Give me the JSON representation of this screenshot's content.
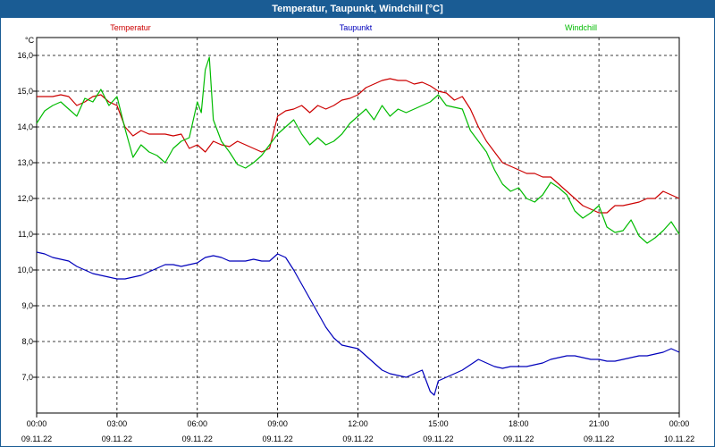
{
  "window": {
    "title": "Temperatur, Taupunkt, Windchill [°C]"
  },
  "chart_data": {
    "type": "line",
    "title": "Temperatur, Taupunkt, Windchill [°C]",
    "ylabel": "°C",
    "xlabel": "",
    "ylim": [
      6.0,
      16.5
    ],
    "xlim": [
      0,
      24
    ],
    "grid": true,
    "y_ticks": [
      {
        "v": 7.0,
        "label": "7,0"
      },
      {
        "v": 8.0,
        "label": "8,0"
      },
      {
        "v": 9.0,
        "label": "9,0"
      },
      {
        "v": 10.0,
        "label": "10,0"
      },
      {
        "v": 11.0,
        "label": "11,0"
      },
      {
        "v": 12.0,
        "label": "12,0"
      },
      {
        "v": 13.0,
        "label": "13,0"
      },
      {
        "v": 14.0,
        "label": "14,0"
      },
      {
        "v": 15.0,
        "label": "15,0"
      },
      {
        "v": 16.0,
        "label": "16,0"
      }
    ],
    "x_ticks": [
      {
        "h": 0,
        "time": "00:00",
        "date": "09.11.22"
      },
      {
        "h": 3,
        "time": "03:00",
        "date": "09.11.22"
      },
      {
        "h": 6,
        "time": "06:00",
        "date": "09.11.22"
      },
      {
        "h": 9,
        "time": "09:00",
        "date": "09.11.22"
      },
      {
        "h": 12,
        "time": "12:00",
        "date": "09.11.22"
      },
      {
        "h": 15,
        "time": "15:00",
        "date": "09.11.22"
      },
      {
        "h": 18,
        "time": "18:00",
        "date": "09.11.22"
      },
      {
        "h": 21,
        "time": "21:00",
        "date": "09.11.22"
      },
      {
        "h": 24,
        "time": "00:00",
        "date": "10.11.22"
      }
    ],
    "series": [
      {
        "name": "Temperatur",
        "color": "#cc0000",
        "x": [
          0,
          0.3,
          0.6,
          0.9,
          1.2,
          1.5,
          1.8,
          2.1,
          2.4,
          2.7,
          3.0,
          3.3,
          3.6,
          3.9,
          4.2,
          4.5,
          4.8,
          5.1,
          5.4,
          5.7,
          6.0,
          6.3,
          6.6,
          6.9,
          7.2,
          7.5,
          7.8,
          8.1,
          8.4,
          8.7,
          9.0,
          9.3,
          9.6,
          9.9,
          10.2,
          10.5,
          10.8,
          11.1,
          11.4,
          11.7,
          12.0,
          12.3,
          12.6,
          12.9,
          13.2,
          13.5,
          13.8,
          14.1,
          14.4,
          14.7,
          15.0,
          15.3,
          15.6,
          15.9,
          16.2,
          16.5,
          16.8,
          17.1,
          17.4,
          17.7,
          18.0,
          18.3,
          18.6,
          18.9,
          19.2,
          19.5,
          19.8,
          20.1,
          20.4,
          20.7,
          21.0,
          21.3,
          21.6,
          21.9,
          22.2,
          22.5,
          22.8,
          23.1,
          23.4,
          23.7,
          24.0
        ],
        "values": [
          14.85,
          14.85,
          14.85,
          14.9,
          14.85,
          14.6,
          14.7,
          14.85,
          14.9,
          14.7,
          14.6,
          14.0,
          13.75,
          13.9,
          13.8,
          13.8,
          13.8,
          13.75,
          13.8,
          13.4,
          13.5,
          13.3,
          13.6,
          13.5,
          13.45,
          13.6,
          13.5,
          13.4,
          13.3,
          13.4,
          14.3,
          14.45,
          14.5,
          14.6,
          14.4,
          14.6,
          14.5,
          14.6,
          14.75,
          14.8,
          14.9,
          15.1,
          15.2,
          15.3,
          15.35,
          15.3,
          15.3,
          15.2,
          15.25,
          15.15,
          15.0,
          14.95,
          14.75,
          14.85,
          14.5,
          14.0,
          13.6,
          13.3,
          13.0,
          12.9,
          12.8,
          12.7,
          12.7,
          12.6,
          12.6,
          12.4,
          12.2,
          12.0,
          11.8,
          11.7,
          11.6,
          11.6,
          11.8,
          11.8,
          11.85,
          11.9,
          12.0,
          12.0,
          12.2,
          12.1,
          12.0
        ]
      },
      {
        "name": "Taupunkt",
        "color": "#0000bb",
        "x": [
          0,
          0.3,
          0.6,
          0.9,
          1.2,
          1.5,
          1.8,
          2.1,
          2.4,
          2.7,
          3.0,
          3.3,
          3.6,
          3.9,
          4.2,
          4.5,
          4.8,
          5.1,
          5.4,
          5.7,
          6.0,
          6.3,
          6.6,
          6.9,
          7.2,
          7.5,
          7.8,
          8.1,
          8.4,
          8.7,
          9.0,
          9.3,
          9.6,
          9.9,
          10.2,
          10.5,
          10.8,
          11.1,
          11.4,
          11.7,
          12.0,
          12.3,
          12.6,
          12.9,
          13.2,
          13.5,
          13.8,
          14.1,
          14.4,
          14.7,
          14.85,
          15.0,
          15.3,
          15.6,
          15.9,
          16.2,
          16.5,
          16.8,
          17.1,
          17.4,
          17.7,
          18.0,
          18.3,
          18.6,
          18.9,
          19.2,
          19.5,
          19.8,
          20.1,
          20.4,
          20.7,
          21.0,
          21.3,
          21.6,
          21.9,
          22.2,
          22.5,
          22.8,
          23.1,
          23.4,
          23.7,
          24.0
        ],
        "values": [
          10.5,
          10.45,
          10.35,
          10.3,
          10.25,
          10.1,
          10.0,
          9.9,
          9.85,
          9.8,
          9.75,
          9.75,
          9.8,
          9.85,
          9.95,
          10.05,
          10.15,
          10.15,
          10.1,
          10.15,
          10.2,
          10.35,
          10.4,
          10.35,
          10.25,
          10.25,
          10.25,
          10.3,
          10.25,
          10.25,
          10.45,
          10.35,
          10.0,
          9.6,
          9.2,
          8.8,
          8.4,
          8.1,
          7.9,
          7.85,
          7.8,
          7.6,
          7.4,
          7.2,
          7.1,
          7.05,
          7.0,
          7.1,
          7.2,
          6.6,
          6.5,
          6.9,
          7.0,
          7.1,
          7.2,
          7.35,
          7.5,
          7.4,
          7.3,
          7.25,
          7.3,
          7.3,
          7.3,
          7.35,
          7.4,
          7.5,
          7.55,
          7.6,
          7.6,
          7.55,
          7.5,
          7.5,
          7.45,
          7.45,
          7.5,
          7.55,
          7.6,
          7.6,
          7.65,
          7.7,
          7.8,
          7.7
        ]
      },
      {
        "name": "Windchill",
        "color": "#00bb00",
        "x": [
          0,
          0.3,
          0.6,
          0.9,
          1.2,
          1.5,
          1.8,
          2.1,
          2.4,
          2.7,
          3.0,
          3.3,
          3.6,
          3.9,
          4.2,
          4.5,
          4.8,
          5.1,
          5.4,
          5.7,
          6.0,
          6.15,
          6.3,
          6.45,
          6.6,
          6.9,
          7.2,
          7.5,
          7.8,
          8.1,
          8.4,
          8.7,
          9.0,
          9.3,
          9.6,
          9.9,
          10.2,
          10.5,
          10.8,
          11.1,
          11.4,
          11.7,
          12.0,
          12.3,
          12.6,
          12.9,
          13.2,
          13.5,
          13.8,
          14.1,
          14.4,
          14.7,
          15.0,
          15.3,
          15.6,
          15.9,
          16.2,
          16.5,
          16.8,
          17.1,
          17.4,
          17.7,
          18.0,
          18.3,
          18.6,
          18.9,
          19.2,
          19.5,
          19.8,
          20.1,
          20.4,
          20.7,
          21.0,
          21.3,
          21.6,
          21.9,
          22.2,
          22.5,
          22.8,
          23.1,
          23.4,
          23.7,
          24.0
        ],
        "values": [
          14.1,
          14.45,
          14.6,
          14.7,
          14.5,
          14.3,
          14.8,
          14.7,
          15.05,
          14.6,
          14.85,
          13.95,
          13.15,
          13.5,
          13.3,
          13.2,
          13.0,
          13.4,
          13.6,
          13.7,
          14.7,
          14.4,
          15.6,
          15.95,
          14.2,
          13.6,
          13.3,
          12.95,
          12.85,
          13.0,
          13.2,
          13.5,
          13.8,
          14.0,
          14.2,
          13.8,
          13.5,
          13.7,
          13.5,
          13.6,
          13.8,
          14.1,
          14.3,
          14.5,
          14.2,
          14.6,
          14.3,
          14.5,
          14.4,
          14.5,
          14.6,
          14.7,
          14.9,
          14.6,
          14.55,
          14.5,
          13.9,
          13.6,
          13.3,
          12.8,
          12.4,
          12.2,
          12.3,
          12.0,
          11.9,
          12.1,
          12.45,
          12.3,
          12.1,
          11.65,
          11.45,
          11.6,
          11.8,
          11.2,
          11.05,
          11.1,
          11.4,
          10.95,
          10.75,
          10.9,
          11.1,
          11.35,
          11.0
        ]
      }
    ],
    "legend": [
      {
        "label": "Temperatur",
        "color": "#cc0000"
      },
      {
        "label": "Taupunkt",
        "color": "#0000bb"
      },
      {
        "label": "Windchill",
        "color": "#00bb00"
      }
    ]
  }
}
